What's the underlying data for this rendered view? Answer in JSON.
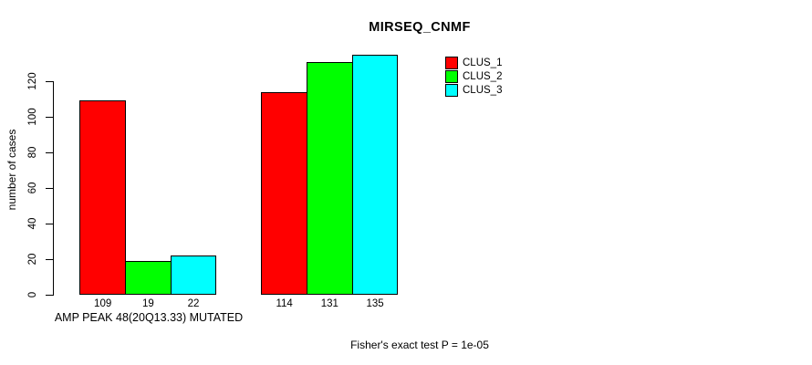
{
  "chart_data": {
    "type": "bar",
    "title": "MIRSEQ_CNMF",
    "ylabel": "number of cases",
    "xlabel": "",
    "group_labels": [
      "AMP PEAK 48(20Q13.33) MUTATED",
      ""
    ],
    "footnote": "Fisher's exact test P = 1e-05",
    "yticks": [
      0,
      20,
      40,
      60,
      80,
      100,
      120
    ],
    "ylim": [
      0,
      135
    ],
    "grid": false,
    "legend_position": "top-right-outside",
    "bar_border_color": "#000000",
    "background_color": "#ffffff",
    "series": [
      {
        "name": "CLUS_1",
        "color": "#ff0000",
        "values": [
          109,
          114
        ]
      },
      {
        "name": "CLUS_2",
        "color": "#00ff00",
        "values": [
          19,
          131
        ]
      },
      {
        "name": "CLUS_3",
        "color": "#00ffff",
        "values": [
          22,
          135
        ]
      }
    ],
    "bar_value_labels": [
      [
        109,
        19,
        22
      ],
      [
        114,
        131,
        135
      ]
    ]
  }
}
